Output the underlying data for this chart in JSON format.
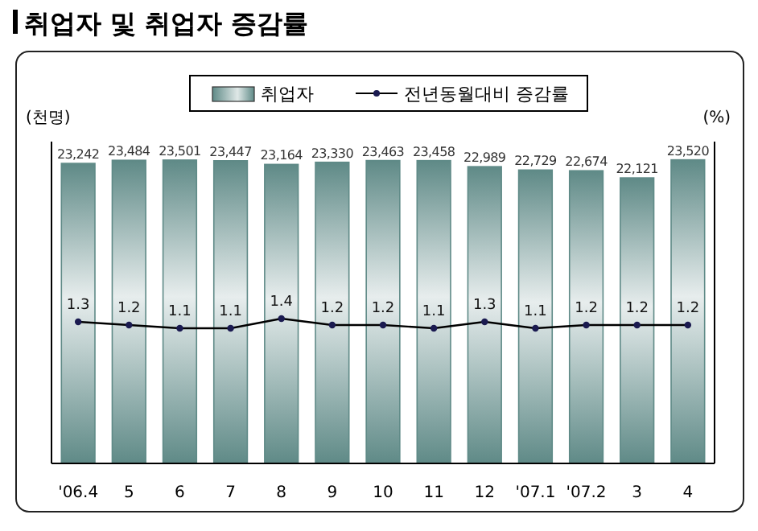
{
  "chart_data": {
    "type": "bar",
    "title": "취업자 및 취업자 증감률",
    "ylabel": "(천명)",
    "y2label": "(%)",
    "categories": [
      "'06.4",
      "5",
      "6",
      "7",
      "8",
      "9",
      "10",
      "11",
      "12",
      "'07.1",
      "'07.2",
      "3",
      "4"
    ],
    "series": [
      {
        "name": "취업자",
        "color": "#5f8a87",
        "values": [
          23242,
          23484,
          23501,
          23447,
          23164,
          23330,
          23463,
          23458,
          22989,
          22729,
          22674,
          22121,
          23520
        ],
        "value_labels": [
          "23,242",
          "23,484",
          "23,501",
          "23,447",
          "23,164",
          "23,330",
          "23,463",
          "23,458",
          "22,989",
          "22,729",
          "22,674",
          "22,121",
          "23,520"
        ]
      },
      {
        "name": "전년동월대비 증감률",
        "type": "line",
        "axis": "y2",
        "color": "#000000",
        "marker": "circle",
        "values": [
          1.3,
          1.2,
          1.1,
          1.1,
          1.4,
          1.2,
          1.2,
          1.1,
          1.3,
          1.1,
          1.2,
          1.2,
          1.2
        ]
      }
    ],
    "data_labels": true,
    "legend": "top"
  }
}
